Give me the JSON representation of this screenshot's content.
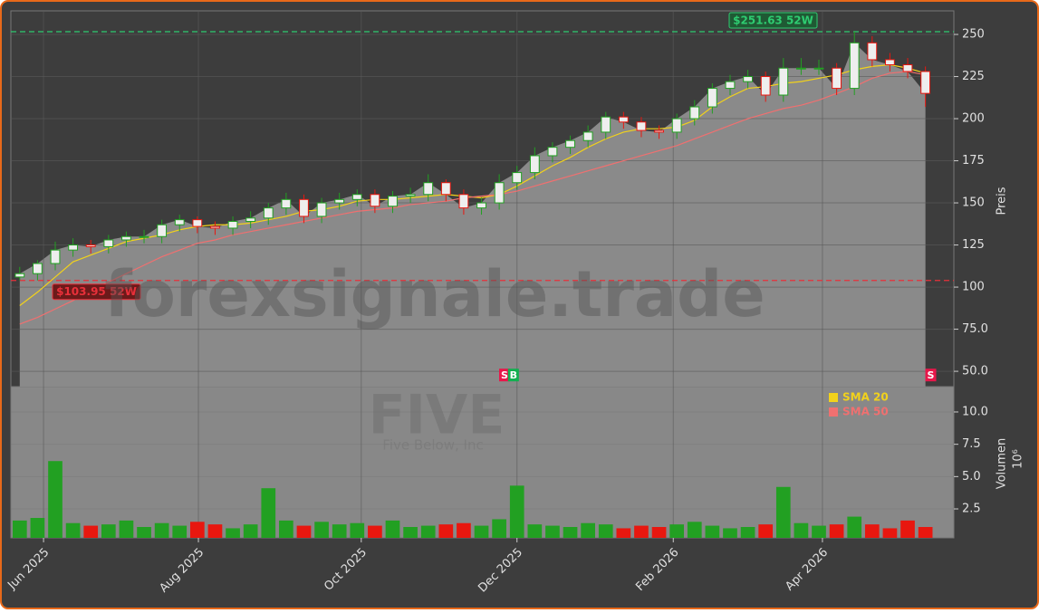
{
  "chart_data": {
    "type": "candlestick",
    "watermark": "forexsignale.trade",
    "symbol": "FIVE",
    "company": "Five Below, Inc",
    "y_label": "Preis",
    "y2_label": "Volumen",
    "y2_unit": "10⁶",
    "xlim": [
      -0.5,
      52.6
    ],
    "xticks": [
      {
        "value": 1.34,
        "label": "Jun 2025"
      },
      {
        "value": 10.06,
        "label": "Aug 2025"
      },
      {
        "value": 19.23,
        "label": "Oct 2025"
      },
      {
        "value": 28.0,
        "label": "Dec 2025"
      },
      {
        "value": 36.8,
        "label": "Feb 2026"
      },
      {
        "value": 45.2,
        "label": "Apr 2026"
      }
    ],
    "ylim": [
      40.9,
      264
    ],
    "yticks": [
      {
        "value": 50,
        "label": "50.0"
      },
      {
        "value": 75,
        "label": "75.0"
      },
      100,
      125,
      150,
      175,
      200,
      225,
      250
    ],
    "y2lim": [
      0.26,
      11.96
    ],
    "y2ticks": [
      {
        "value": 2.5,
        "label": "2.5"
      },
      {
        "value": 5,
        "label": "5.0"
      },
      {
        "value": 7.5,
        "label": "7.5"
      },
      {
        "value": 10,
        "label": "10.0"
      }
    ],
    "grid": true,
    "up_color": "#22a022",
    "down_color": "#e8170f",
    "open": [
      106,
      108,
      114,
      122,
      125,
      124,
      128,
      130,
      130,
      137,
      140,
      136,
      135,
      139,
      141,
      147,
      152,
      142,
      150,
      152,
      155,
      148,
      154,
      155,
      162,
      155,
      147,
      150,
      162,
      168,
      178,
      183,
      187,
      192,
      201,
      198,
      193,
      192,
      200,
      207,
      218,
      222,
      225,
      214,
      230,
      230,
      230,
      218,
      245,
      235,
      232,
      228
    ],
    "high": [
      112,
      116,
      127,
      129,
      128,
      131,
      133,
      134,
      140,
      143,
      142,
      139,
      142,
      145,
      150,
      156,
      155,
      153,
      156,
      158,
      158,
      157,
      159,
      167,
      164,
      158,
      153,
      167,
      172,
      183,
      186,
      190,
      196,
      204,
      204,
      201,
      196,
      203,
      211,
      221,
      226,
      229,
      228,
      236,
      236,
      235,
      233,
      251.63,
      249,
      239,
      236,
      231
    ],
    "low": [
      103.95,
      104,
      110,
      118,
      120,
      120,
      124,
      126,
      126,
      133,
      132,
      131,
      131,
      135,
      137,
      143,
      138,
      138,
      146,
      148,
      144,
      144,
      150,
      151,
      151,
      143,
      143,
      146,
      158,
      164,
      174,
      179,
      183,
      188,
      194,
      189,
      188,
      188,
      196,
      203,
      214,
      218,
      210,
      210,
      226,
      226,
      214,
      214,
      231,
      228,
      224,
      207
    ],
    "close": [
      108,
      114,
      122,
      125,
      124,
      128,
      130,
      130,
      137,
      140,
      136,
      135,
      139,
      141,
      147,
      152,
      142,
      150,
      152,
      155,
      148,
      154,
      155,
      162,
      155,
      147,
      150,
      162,
      168,
      178,
      183,
      187,
      192,
      201,
      198,
      193,
      192,
      200,
      207,
      218,
      222,
      225,
      214,
      230,
      230,
      230,
      218,
      245,
      235,
      232,
      228,
      215
    ],
    "volume": [
      1.6,
      1.8,
      6.2,
      1.4,
      1.2,
      1.3,
      1.6,
      1.1,
      1.4,
      1.2,
      1.5,
      1.3,
      1.0,
      1.3,
      4.1,
      1.6,
      1.2,
      1.5,
      1.3,
      1.4,
      1.2,
      1.6,
      1.1,
      1.2,
      1.3,
      1.4,
      1.2,
      1.7,
      4.3,
      1.3,
      1.2,
      1.1,
      1.4,
      1.3,
      1.0,
      1.2,
      1.1,
      1.3,
      1.5,
      1.2,
      1.0,
      1.1,
      1.3,
      4.2,
      1.4,
      1.2,
      1.3,
      1.9,
      1.3,
      1.0,
      1.6,
      1.1
    ],
    "series": [
      {
        "name": "SMA 20",
        "color": "#f2d21b",
        "values": [
          89,
          97,
          106,
          115,
          119,
          123,
          127,
          129,
          131,
          134,
          136,
          137,
          137,
          138,
          140,
          142,
          145,
          146,
          148,
          151,
          152,
          152,
          153,
          154,
          155,
          154,
          153,
          155,
          160,
          166,
          172,
          177,
          183,
          188,
          192,
          194,
          194,
          195,
          199,
          207,
          213,
          218,
          219,
          221,
          222,
          224,
          226,
          229,
          231,
          232,
          230,
          227
        ]
      },
      {
        "name": "SMA 50",
        "color": "#f07070",
        "values": [
          78,
          82,
          87,
          92,
          98,
          103,
          108,
          113,
          118,
          122,
          126,
          128,
          131,
          133,
          135,
          137,
          139,
          141,
          143,
          145,
          146,
          147,
          149,
          150,
          151,
          153,
          154,
          155,
          157,
          160,
          163,
          166,
          169,
          172,
          175,
          178,
          181,
          184,
          188,
          192,
          196,
          200,
          203,
          206,
          208,
          211,
          215,
          219,
          224,
          227,
          228,
          226
        ]
      }
    ],
    "annotations": [
      {
        "text": "$251.63 52W",
        "value": 251.63,
        "color": "#2ecc71"
      },
      {
        "text": "$103.95 52W",
        "value": 103.95,
        "color": "#e8303a"
      }
    ],
    "signals": [
      {
        "label": "S",
        "x": 27.3,
        "y": 47.8,
        "color": "#e8174a"
      },
      {
        "label": "B",
        "x": 27.8,
        "y": 47.8,
        "color": "#12b050"
      },
      {
        "label": "S",
        "x": 51.3,
        "y": 47.8,
        "color": "#e8174a"
      }
    ]
  }
}
